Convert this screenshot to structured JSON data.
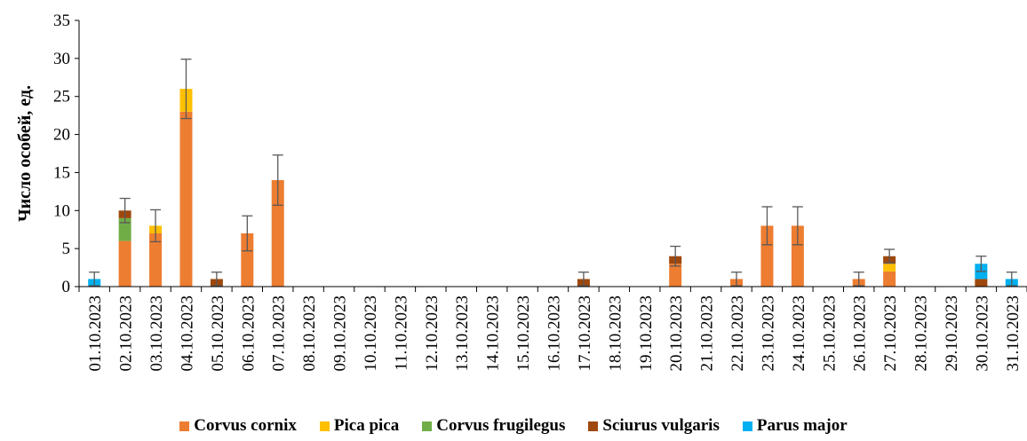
{
  "chart_data": {
    "type": "bar",
    "stacked": true,
    "ylabel": "Число особей, ед.",
    "xlabel": "",
    "ylim": [
      0,
      35
    ],
    "yticks": [
      0,
      5,
      10,
      15,
      20,
      25,
      30,
      35
    ],
    "grid": false,
    "legend_position": "bottom",
    "categories": [
      "01.10.2023",
      "02.10.2023",
      "03.10.2023",
      "04.10.2023",
      "05.10.2023",
      "06.10.2023",
      "07.10.2023",
      "08.10.2023",
      "09.10.2023",
      "10.10.2023",
      "11.10.2023",
      "12.10.2023",
      "13.10.2023",
      "14.10.2023",
      "15.10.2023",
      "16.10.2023",
      "17.10.2023",
      "18.10.2023",
      "19.10.2023",
      "20.10.2023",
      "21.10.2023",
      "22.10.2023",
      "23.10.2023",
      "24.10.2023",
      "25.10.2023",
      "26.10.2023",
      "27.10.2023",
      "28.10.2023",
      "29.10.2023",
      "30.10.2023",
      "31.10.2023"
    ],
    "series": [
      {
        "name": "Corvus cornix",
        "color": "#ED7D31",
        "values": [
          0,
          6,
          7,
          23,
          0,
          7,
          14,
          0,
          0,
          0,
          0,
          0,
          0,
          0,
          0,
          0,
          0,
          0,
          0,
          3,
          0,
          1,
          8,
          8,
          0,
          1,
          2,
          0,
          0,
          0,
          0
        ]
      },
      {
        "name": "Pica pica",
        "color": "#FFC000",
        "values": [
          0,
          0,
          1,
          3,
          0,
          0,
          0,
          0,
          0,
          0,
          0,
          0,
          0,
          0,
          0,
          0,
          0,
          0,
          0,
          0,
          0,
          0,
          0,
          0,
          0,
          0,
          1,
          0,
          0,
          0,
          0
        ]
      },
      {
        "name": "Corvus frugilegus",
        "color": "#70AD47",
        "values": [
          0,
          3,
          0,
          0,
          0,
          0,
          0,
          0,
          0,
          0,
          0,
          0,
          0,
          0,
          0,
          0,
          0,
          0,
          0,
          0,
          0,
          0,
          0,
          0,
          0,
          0,
          0,
          0,
          0,
          0,
          0
        ]
      },
      {
        "name": "Sciurus vulgaris",
        "color": "#9E480E",
        "values": [
          0,
          1,
          0,
          0,
          1,
          0,
          0,
          0,
          0,
          0,
          0,
          0,
          0,
          0,
          0,
          0,
          1,
          0,
          0,
          1,
          0,
          0,
          0,
          0,
          0,
          0,
          1,
          0,
          0,
          1,
          0
        ]
      },
      {
        "name": "Parus major",
        "color": "#00B0F0",
        "values": [
          1,
          0,
          0,
          0,
          0,
          0,
          0,
          0,
          0,
          0,
          0,
          0,
          0,
          0,
          0,
          0,
          0,
          0,
          0,
          0,
          0,
          0,
          0,
          0,
          0,
          0,
          0,
          0,
          0,
          2,
          1
        ]
      }
    ],
    "error_bars": [
      0.9,
      1.6,
      2.1,
      3.9,
      0.9,
      2.3,
      3.3,
      0,
      0,
      0,
      0,
      0,
      0,
      0,
      0,
      0,
      0.9,
      0,
      0,
      1.3,
      0,
      0.9,
      2.5,
      2.5,
      0,
      0.9,
      0.9,
      0,
      0,
      1.0,
      0.9
    ]
  }
}
